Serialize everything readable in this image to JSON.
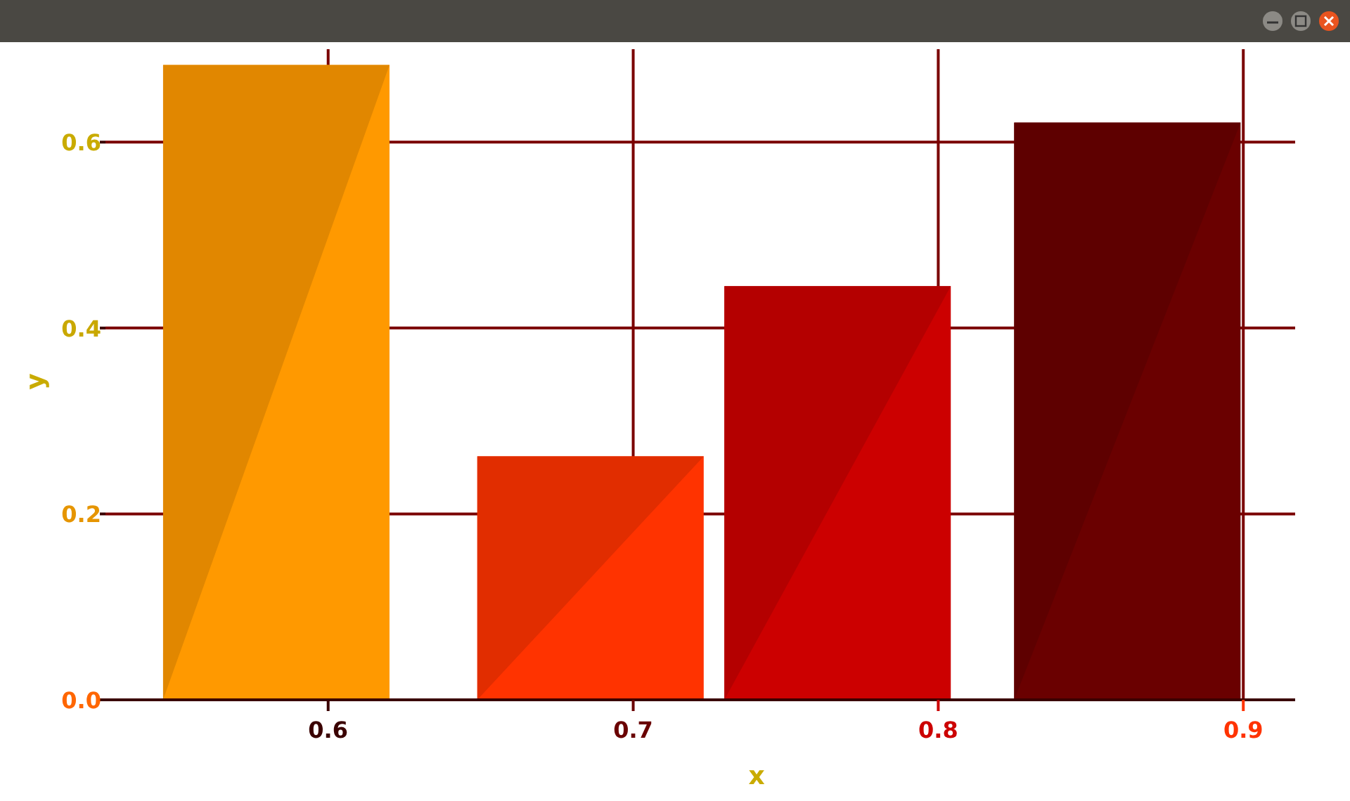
{
  "chart_data": {
    "type": "bar",
    "xlabel": "x",
    "ylabel": "y",
    "x": [
      0.583,
      0.686,
      0.767,
      0.862
    ],
    "values": [
      0.683,
      0.262,
      0.445,
      0.621
    ],
    "colors": [
      "#ff9900",
      "#ff3300",
      "#cc0000",
      "#6a0000"
    ],
    "xlim": [
      0.527,
      0.917
    ],
    "ylim": [
      0,
      0.7
    ],
    "xticks": [
      0.6,
      0.7,
      0.8,
      0.9
    ],
    "yticks": [
      {
        "value": 0,
        "label": "0.0"
      },
      0.2,
      0.4,
      0.6
    ],
    "grid": true
  }
}
